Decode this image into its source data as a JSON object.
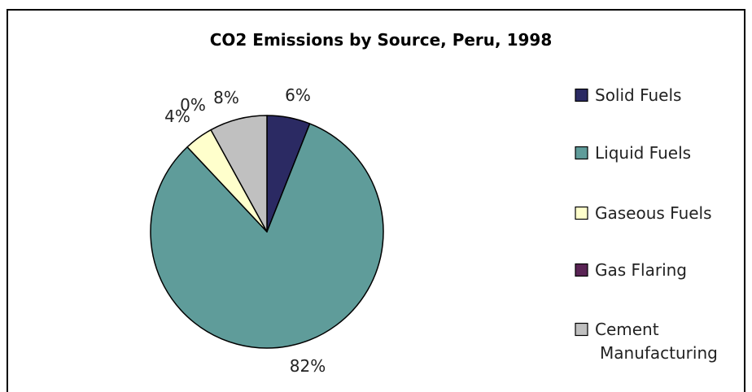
{
  "chart_data": {
    "type": "pie",
    "title": "CO2 Emissions by Source, Peru, 1998",
    "categories": [
      "Solid Fuels",
      "Liquid Fuels",
      "Gaseous Fuels",
      "Gas Flaring",
      "Cement Manufacturing"
    ],
    "values": [
      6,
      82,
      4,
      0,
      8
    ],
    "data_labels": [
      "6%",
      "82%",
      "4%",
      "0%",
      "8%"
    ],
    "colors": [
      "#2b2a63",
      "#5f9c9a",
      "#ffffcc",
      "#5a2455",
      "#c0c0c0"
    ],
    "legend": {
      "placement": "right",
      "entries": [
        "Solid Fuels",
        "Liquid Fuels",
        "Gaseous Fuels",
        "Gas Flaring",
        "Cement Manufacturing"
      ]
    }
  }
}
